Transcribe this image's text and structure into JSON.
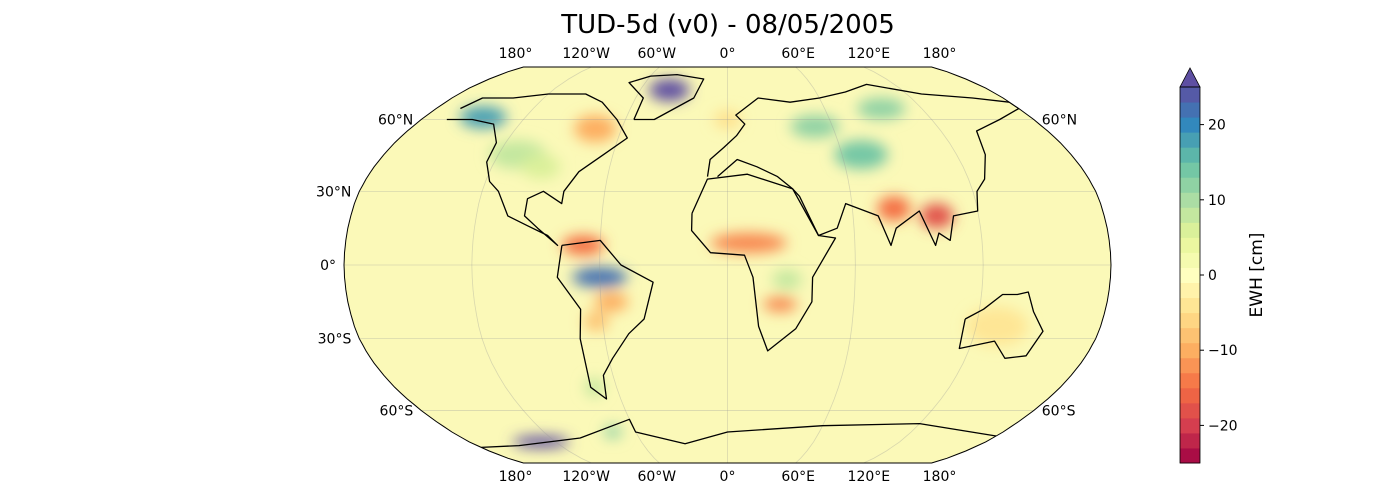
{
  "title": "TUD-5d (v0) - 08/05/2005",
  "lon_labels": [
    "180°",
    "120°W",
    "60°W",
    "0°",
    "60°E",
    "120°E",
    "180°"
  ],
  "lon_values": [
    -180,
    -120,
    -60,
    0,
    60,
    120,
    180
  ],
  "lat_labels_left": [
    "60°N",
    "30°N",
    "0°",
    "30°S",
    "60°S"
  ],
  "lat_labels_right": [
    "60°N",
    "60°S"
  ],
  "lat_values_left": [
    60,
    30,
    0,
    -30,
    -60
  ],
  "lat_values_right": [
    60,
    -60
  ],
  "colorbar": {
    "label": "EWH [cm]",
    "ticks": [
      "20",
      "10",
      "0",
      "−10",
      "−20"
    ],
    "tick_values": [
      20,
      10,
      0,
      -10,
      -20
    ],
    "range": [
      -25,
      25
    ],
    "step": 2,
    "extend": "max",
    "colormap": [
      "#9e0142",
      "#d53e4f",
      "#f46d43",
      "#fdae61",
      "#fee08b",
      "#ffffbf",
      "#e6f598",
      "#abdda4",
      "#66c2a5",
      "#3288bd",
      "#5e4fa2"
    ]
  },
  "map": {
    "projection": "robinson",
    "background_value": 1,
    "anomalies": [
      {
        "lon": -40,
        "lat": 74,
        "value": 28,
        "rlon": 14,
        "rlat": 6
      },
      {
        "lon": -145,
        "lat": 61,
        "value": 18,
        "rlon": 14,
        "rlat": 5
      },
      {
        "lon": -75,
        "lat": 56,
        "value": -10,
        "rlon": 12,
        "rlat": 6
      },
      {
        "lon": -110,
        "lat": 45,
        "value": 8,
        "rlon": 15,
        "rlat": 6
      },
      {
        "lon": -95,
        "lat": 40,
        "value": 6,
        "rlon": 10,
        "rlat": 5
      },
      {
        "lon": -60,
        "lat": -5,
        "value": 22,
        "rlon": 13,
        "rlat": 4
      },
      {
        "lon": -68,
        "lat": 8,
        "value": -15,
        "rlon": 10,
        "rlat": 4
      },
      {
        "lon": -55,
        "lat": -15,
        "value": -10,
        "rlon": 8,
        "rlat": 4
      },
      {
        "lon": -63,
        "lat": -23,
        "value": -8,
        "rlon": 6,
        "rlat": 4
      },
      {
        "lon": -72,
        "lat": -50,
        "value": 8,
        "rlon": 5,
        "rlat": 4
      },
      {
        "lon": 10,
        "lat": 9,
        "value": -13,
        "rlon": 18,
        "rlat": 4
      },
      {
        "lon": 25,
        "lat": -16,
        "value": -13,
        "rlon": 8,
        "rlat": 3
      },
      {
        "lon": 28,
        "lat": -6,
        "value": 8,
        "rlon": 7,
        "rlat": 4
      },
      {
        "lon": 80,
        "lat": 23,
        "value": -15,
        "rlon": 8,
        "rlat": 5
      },
      {
        "lon": 100,
        "lat": 20,
        "value": -18,
        "rlon": 8,
        "rlat": 5
      },
      {
        "lon": 70,
        "lat": 45,
        "value": 14,
        "rlon": 14,
        "rlat": 6
      },
      {
        "lon": 50,
        "lat": 57,
        "value": 12,
        "rlon": 14,
        "rlat": 5
      },
      {
        "lon": 95,
        "lat": 65,
        "value": 12,
        "rlon": 15,
        "rlat": 5
      },
      {
        "lon": 0,
        "lat": 60,
        "value": -5,
        "rlon": 8,
        "rlat": 4
      },
      {
        "lon": -130,
        "lat": -75,
        "value": 28,
        "rlon": 20,
        "rlat": 3
      },
      {
        "lon": -75,
        "lat": -70,
        "value": 12,
        "rlon": 6,
        "rlat": 3
      },
      {
        "lon": 130,
        "lat": -25,
        "value": -4,
        "rlon": 15,
        "rlat": 8
      }
    ]
  }
}
